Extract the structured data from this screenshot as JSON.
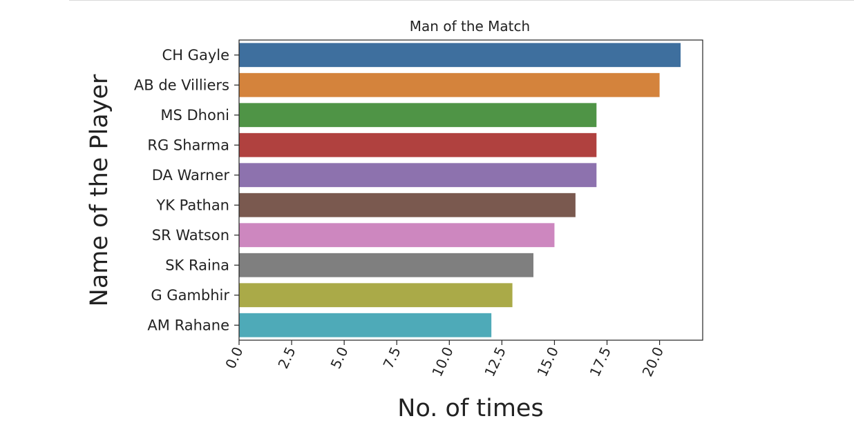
{
  "chart_data": {
    "type": "bar",
    "orientation": "horizontal",
    "title": "Man of the Match",
    "xlabel": "No. of times",
    "ylabel": "Name of the Player",
    "categories": [
      "CH Gayle",
      "AB de Villiers",
      "MS Dhoni",
      "RG Sharma",
      "DA Warner",
      "YK Pathan",
      "SR Watson",
      "SK Raina",
      "G Gambhir",
      "AM Rahane"
    ],
    "values": [
      21,
      20,
      17,
      17,
      17,
      16,
      15,
      14,
      13,
      12
    ],
    "colors": [
      "#3e6f9e",
      "#d4833c",
      "#4f9446",
      "#b0413f",
      "#8d72ae",
      "#7a594f",
      "#cd87bf",
      "#7f7f7f",
      "#aaaa48",
      "#4eaab8"
    ],
    "xlim": [
      0,
      22.05
    ],
    "xticks": [
      "0.0",
      "2.5",
      "5.0",
      "7.5",
      "10.0",
      "12.5",
      "15.0",
      "17.5",
      "20.0"
    ],
    "xtick_values": [
      0,
      2.5,
      5,
      7.5,
      10,
      12.5,
      15,
      17.5,
      20
    ],
    "xtick_rotation": 65,
    "grid": false,
    "legend": "none"
  }
}
